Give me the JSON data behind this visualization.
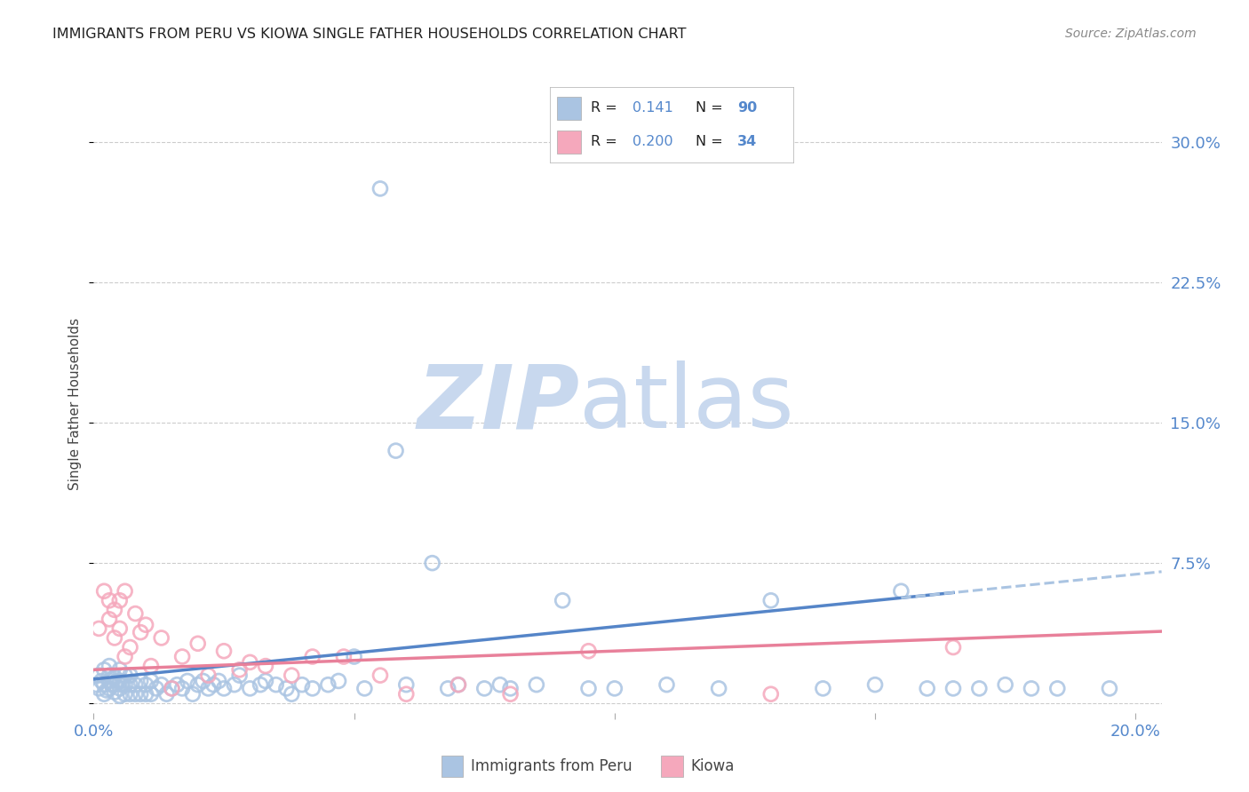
{
  "title": "IMMIGRANTS FROM PERU VS KIOWA SINGLE FATHER HOUSEHOLDS CORRELATION CHART",
  "source": "Source: ZipAtlas.com",
  "ylabel": "Single Father Households",
  "xlim": [
    0.0,
    0.205
  ],
  "ylim": [
    -0.005,
    0.325
  ],
  "R_peru": "0.141",
  "N_peru": "90",
  "R_kiowa": "0.200",
  "N_kiowa": "34",
  "color_peru": "#aac4e2",
  "color_peru_edge": "#7aadd4",
  "color_kiowa": "#f5a8bc",
  "color_kiowa_edge": "#e8809a",
  "trendline_peru_color": "#5585c8",
  "trendline_kiowa_color": "#e8809a",
  "trendline_peru_dash_color": "#aac4e2",
  "watermark_zip_color": "#c8d8ee",
  "watermark_atlas_color": "#c8d8ee",
  "tick_color": "#5588cc",
  "title_color": "#222222",
  "source_color": "#888888",
  "grid_color": "#cccccc",
  "peru_x": [
    0.0005,
    0.001,
    0.001,
    0.0015,
    0.002,
    0.002,
    0.002,
    0.0025,
    0.003,
    0.003,
    0.003,
    0.003,
    0.0035,
    0.004,
    0.004,
    0.004,
    0.0045,
    0.005,
    0.005,
    0.005,
    0.005,
    0.0055,
    0.006,
    0.006,
    0.006,
    0.007,
    0.007,
    0.007,
    0.008,
    0.008,
    0.009,
    0.009,
    0.01,
    0.01,
    0.011,
    0.011,
    0.012,
    0.013,
    0.014,
    0.015,
    0.016,
    0.017,
    0.018,
    0.019,
    0.02,
    0.021,
    0.022,
    0.023,
    0.024,
    0.025,
    0.027,
    0.028,
    0.03,
    0.032,
    0.033,
    0.035,
    0.037,
    0.038,
    0.04,
    0.042,
    0.045,
    0.047,
    0.05,
    0.052,
    0.055,
    0.058,
    0.06,
    0.065,
    0.068,
    0.07,
    0.075,
    0.078,
    0.08,
    0.085,
    0.09,
    0.095,
    0.1,
    0.11,
    0.12,
    0.13,
    0.14,
    0.15,
    0.155,
    0.16,
    0.165,
    0.17,
    0.175,
    0.18,
    0.185,
    0.195
  ],
  "peru_y": [
    0.01,
    0.008,
    0.015,
    0.012,
    0.005,
    0.01,
    0.018,
    0.007,
    0.008,
    0.012,
    0.015,
    0.02,
    0.01,
    0.006,
    0.01,
    0.014,
    0.012,
    0.004,
    0.008,
    0.012,
    0.018,
    0.01,
    0.005,
    0.01,
    0.015,
    0.005,
    0.01,
    0.015,
    0.005,
    0.01,
    0.005,
    0.012,
    0.005,
    0.01,
    0.005,
    0.012,
    0.008,
    0.01,
    0.005,
    0.008,
    0.01,
    0.008,
    0.012,
    0.005,
    0.01,
    0.012,
    0.008,
    0.01,
    0.012,
    0.008,
    0.01,
    0.015,
    0.008,
    0.01,
    0.012,
    0.01,
    0.008,
    0.005,
    0.01,
    0.008,
    0.01,
    0.012,
    0.025,
    0.008,
    0.275,
    0.135,
    0.01,
    0.075,
    0.008,
    0.01,
    0.008,
    0.01,
    0.008,
    0.01,
    0.055,
    0.008,
    0.008,
    0.01,
    0.008,
    0.055,
    0.008,
    0.01,
    0.06,
    0.008,
    0.008,
    0.008,
    0.01,
    0.008,
    0.008,
    0.008
  ],
  "kiowa_x": [
    0.001,
    0.002,
    0.003,
    0.003,
    0.004,
    0.004,
    0.005,
    0.005,
    0.006,
    0.006,
    0.007,
    0.008,
    0.009,
    0.01,
    0.011,
    0.013,
    0.015,
    0.017,
    0.02,
    0.022,
    0.025,
    0.028,
    0.03,
    0.033,
    0.038,
    0.042,
    0.048,
    0.055,
    0.06,
    0.07,
    0.08,
    0.095,
    0.13,
    0.165
  ],
  "kiowa_y": [
    0.04,
    0.06,
    0.055,
    0.045,
    0.05,
    0.035,
    0.055,
    0.04,
    0.025,
    0.06,
    0.03,
    0.048,
    0.038,
    0.042,
    0.02,
    0.035,
    0.008,
    0.025,
    0.032,
    0.015,
    0.028,
    0.018,
    0.022,
    0.02,
    0.015,
    0.025,
    0.025,
    0.015,
    0.005,
    0.01,
    0.005,
    0.028,
    0.005,
    0.03
  ]
}
